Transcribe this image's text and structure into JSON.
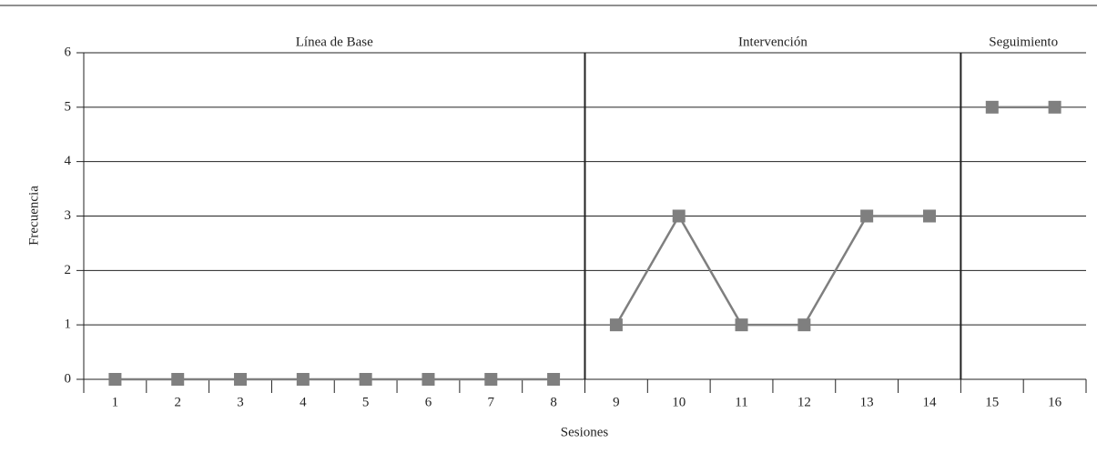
{
  "chart_data": {
    "type": "phase-line",
    "x_label": "Sesiones",
    "y_label": "Frecuencia",
    "ylim": [
      0,
      6
    ],
    "yticks": [
      0,
      1,
      2,
      3,
      4,
      5,
      6
    ],
    "grid": true,
    "color": "#7f7f7f",
    "phases": [
      {
        "label": "Línea de Base",
        "categories": [
          "1",
          "2",
          "3",
          "4",
          "5",
          "6",
          "7",
          "8"
        ],
        "values": [
          0,
          0,
          0,
          0,
          0,
          0,
          0,
          0
        ]
      },
      {
        "label": "Intervención",
        "categories": [
          "9",
          "10",
          "11",
          "12",
          "13",
          "14"
        ],
        "values": [
          1,
          3,
          1,
          1,
          3,
          3
        ]
      },
      {
        "label": "Seguimiento",
        "categories": [
          "15",
          "16"
        ],
        "values": [
          5,
          5
        ]
      }
    ]
  }
}
